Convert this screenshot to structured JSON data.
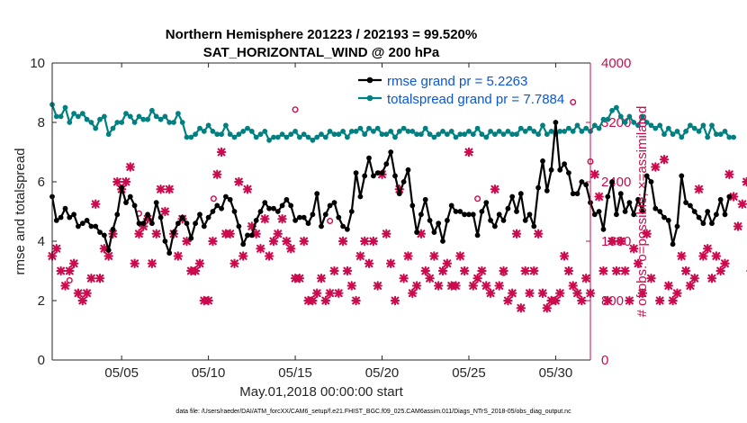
{
  "chart_data": {
    "type": "line",
    "title": "Northern Hemisphere 201223 / 202193 = 99.520%",
    "subtitle": "SAT_HORIZONTAL_WIND @ 200 hPa",
    "xlabel": "May.01,2018 00:00:00 start",
    "ylabel": "rmse and totalspread",
    "ylabel_right": "# of obs: o=possible; ×=assimilated",
    "xlim": [
      1,
      32
    ],
    "ylim": [
      0,
      10
    ],
    "ylim_right": [
      0,
      4000
    ],
    "x_ticks": [
      5,
      10,
      15,
      20,
      25,
      30
    ],
    "x_tick_labels": [
      "05/05",
      "05/10",
      "05/15",
      "05/20",
      "05/25",
      "05/30"
    ],
    "y_ticks": [
      0,
      2,
      4,
      6,
      8,
      10
    ],
    "y_tick_labels": [
      "0",
      "2",
      "4",
      "6",
      "8",
      "10"
    ],
    "y_right_ticks": [
      0,
      800,
      1600,
      2400,
      3200,
      4000
    ],
    "y_right_tick_labels": [
      "0",
      "800",
      "1600",
      "2400",
      "3200",
      "4000"
    ],
    "legend": [
      "rmse grand pr = 5.2263",
      "totalspread grand pr = 7.7884"
    ],
    "legend_position": "top-right",
    "footnote": "data file: /Users/raeder/DAI/ATM_forcXX/CAM6_setup/f.e21.FHIST_BGC.f09_025.CAM6assim.011/Diags_NTrS_2018-05/obs_diag_output.nc",
    "colors": {
      "rmse": "#000000",
      "totalspread": "#008080",
      "obs": "#cc0b4e"
    },
    "series": [
      {
        "name": "rmse",
        "x_start": 1.0,
        "x_step": 0.25,
        "values": [
          5.5,
          4.7,
          4.8,
          5.1,
          4.8,
          4.9,
          4.5,
          4.6,
          4.7,
          4.5,
          4.5,
          4.3,
          4.2,
          3.7,
          4.4,
          4.9,
          5.8,
          5.3,
          5.5,
          5.2,
          4.6,
          4.6,
          4.9,
          4.6,
          5.3,
          4.8,
          4.0,
          3.6,
          4.3,
          4.6,
          4.8,
          4.6,
          4.1,
          4.6,
          4.9,
          4.5,
          4.8,
          5.0,
          5.2,
          5.1,
          5.5,
          5.4,
          5.0,
          4.5,
          3.9,
          4.2,
          4.2,
          4.7,
          5.0,
          5.3,
          5.1,
          5.1,
          5.0,
          5.2,
          5.4,
          5.2,
          4.7,
          4.8,
          4.8,
          4.6,
          4.9,
          5.6,
          4.5,
          4.9,
          5.2,
          5.3,
          4.8,
          4.5,
          4.4,
          5.0,
          6.3,
          5.5,
          6.2,
          6.8,
          6.2,
          6.3,
          6.3,
          6.6,
          7.0,
          6.2,
          5.6,
          6.0,
          6.4,
          5.2,
          4.3,
          4.9,
          5.4,
          4.7,
          4.3,
          4.6,
          4.0,
          4.7,
          5.2,
          5.0,
          5.0,
          4.9,
          4.9,
          4.9,
          4.2,
          5.0,
          5.3,
          4.7,
          4.5,
          4.9,
          4.7,
          5.1,
          5.5,
          5.0,
          5.6,
          4.7,
          4.9,
          4.5,
          5.8,
          6.7,
          5.7,
          6.4,
          8.0,
          6.4,
          6.6,
          6.3,
          5.6,
          5.6,
          6.0,
          5.9,
          5.3,
          4.9,
          5.0,
          4.4,
          5.5,
          6.0,
          4.9,
          5.6,
          5.0,
          5.3,
          4.9,
          5.4,
          5.0,
          6.2,
          6.0,
          5.1,
          5.0,
          4.8,
          4.7,
          3.9,
          4.5,
          6.2,
          5.3,
          5.2,
          5.0,
          4.8,
          4.6,
          5.0,
          4.6,
          4.9,
          5.4,
          4.9,
          5.5
        ]
      },
      {
        "name": "totalspread",
        "x_start": 1.0,
        "x_step": 0.25,
        "values": [
          8.6,
          8.2,
          8.2,
          8.5,
          8.0,
          8.3,
          8.2,
          8.3,
          8.1,
          8.0,
          7.8,
          8.1,
          8.2,
          7.6,
          7.8,
          8.0,
          8.0,
          8.3,
          8.2,
          8.0,
          8.2,
          8.1,
          8.1,
          8.4,
          8.2,
          8.1,
          8.2,
          8.0,
          8.0,
          8.3,
          8.0,
          7.5,
          7.5,
          7.6,
          7.8,
          7.7,
          7.9,
          7.7,
          7.6,
          7.6,
          7.9,
          7.6,
          7.5,
          7.6,
          7.7,
          7.8,
          7.7,
          7.5,
          7.6,
          7.7,
          7.4,
          7.5,
          7.5,
          7.6,
          7.5,
          7.6,
          7.7,
          7.5,
          7.6,
          7.5,
          7.4,
          7.5,
          7.6,
          7.5,
          7.7,
          7.6,
          7.6,
          7.7,
          7.5,
          7.7,
          7.7,
          7.8,
          7.6,
          7.8,
          7.7,
          7.8,
          7.6,
          7.6,
          7.7,
          7.5,
          7.7,
          7.8,
          7.7,
          7.7,
          7.6,
          7.6,
          7.8,
          7.6,
          7.5,
          7.6,
          7.7,
          7.6,
          7.7,
          7.5,
          7.6,
          7.6,
          7.7,
          7.6,
          7.8,
          7.6,
          7.5,
          7.7,
          7.6,
          7.7,
          7.6,
          7.7,
          7.6,
          7.6,
          7.8,
          7.7,
          7.8,
          7.7,
          7.6,
          7.9,
          7.6,
          7.7,
          7.6,
          7.7,
          7.7,
          7.8,
          7.7,
          7.9,
          7.7,
          7.8,
          7.7,
          7.9,
          7.8,
          8.1,
          8.1,
          8.4,
          8.5,
          8.2,
          8.0,
          8.2,
          8.0,
          7.9,
          8.2,
          8.0,
          7.9,
          7.8,
          7.9,
          7.6,
          7.8,
          7.6,
          7.7,
          7.5,
          7.7,
          7.9,
          7.8,
          7.7,
          7.9,
          7.5,
          7.9,
          7.6,
          7.6,
          7.7,
          7.5,
          7.5
        ]
      },
      {
        "name": "obs_assimilated",
        "x_start": 1.0,
        "x_step": 0.25,
        "values": [
          1400,
          1500,
          1200,
          1000,
          1200,
          1300,
          900,
          800,
          900,
          1100,
          2100,
          1100,
          1500,
          1400,
          1700,
          2400,
          2300,
          2400,
          2600,
          1300,
          1700,
          1800,
          1900,
          1300,
          1700,
          2300,
          2000,
          2300,
          1700,
          1400,
          1900,
          1600,
          1200,
          1200,
          1300,
          800,
          800,
          1600,
          2500,
          2800,
          1700,
          1700,
          1300,
          2400,
          1400,
          2300,
          1800,
          1700,
          1500,
          1900,
          1400,
          1600,
          1700,
          1900,
          1600,
          1500,
          1100,
          1100,
          1600,
          800,
          800,
          900,
          1100,
          800,
          900,
          1200,
          900,
          1600,
          1200,
          1000,
          800,
          1400,
          1600,
          1300,
          1600,
          1000,
          2500,
          1700,
          1300,
          800,
          2300,
          1100,
          1400,
          900,
          1000,
          1700,
          1200,
          1100,
          1400,
          1000,
          1200,
          1300,
          1000,
          1000,
          1400,
          1200,
          2800,
          1000,
          1100,
          1200,
          1000,
          900,
          2300,
          1000,
          1200,
          800,
          900,
          1700,
          700,
          1200,
          900,
          1200,
          1700,
          900,
          700,
          800,
          800,
          900,
          1400,
          1200,
          1000,
          900,
          800,
          1100,
          900,
          2500,
          2200,
          1200,
          800,
          1600,
          1200,
          1600,
          1200,
          800,
          1500,
          1300,
          900,
          1700,
          1100,
          2600,
          800,
          2700,
          1000,
          800,
          900,
          1400,
          1200,
          1000,
          1100,
          2300,
          1400,
          1500,
          1100,
          1400,
          1200,
          1300,
          2500,
          2200,
          1800,
          2100,
          2400,
          1200,
          3900,
          1000,
          2600,
          2000
        ]
      },
      {
        "name": "obs_possible_outliers",
        "x": [
          2.0,
          6.0,
          10.3,
          15.0,
          17.0,
          25.5,
          27.0,
          31.0,
          32.0
        ],
        "values": [
          1000,
          1900,
          2100,
          3300,
          1800,
          2100,
          1100,
          3400,
          2600
        ]
      }
    ]
  }
}
